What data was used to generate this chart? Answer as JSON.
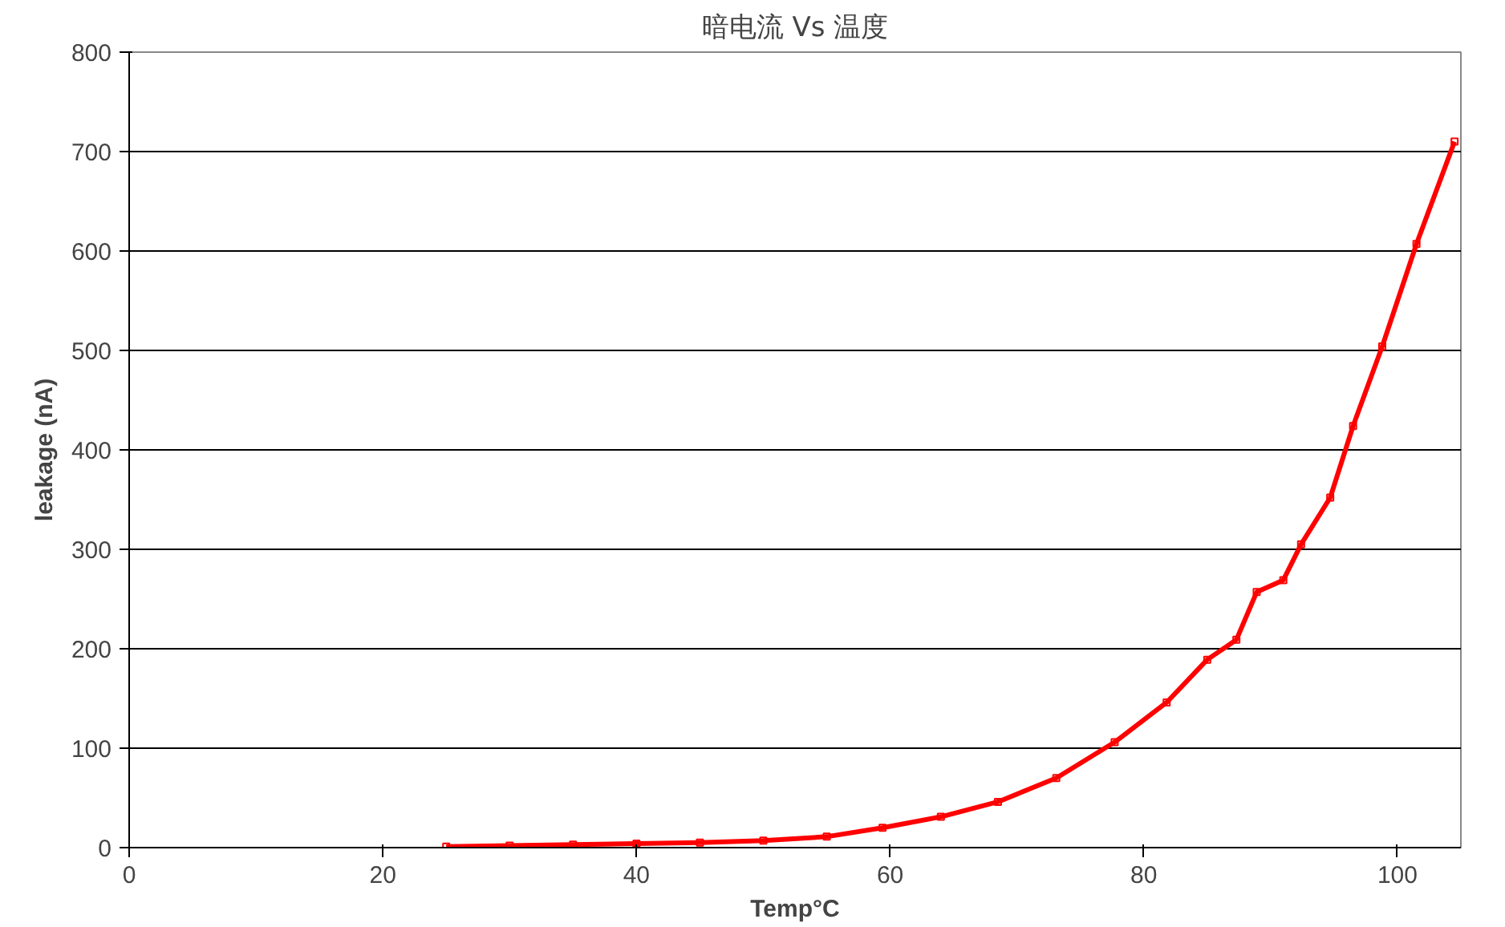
{
  "chart_data": {
    "type": "line",
    "title": "暗电流 Vs 温度",
    "xlabel": "Temp°C",
    "ylabel": "leakage (nA)",
    "series": [
      {
        "color": "#ff0000",
        "x": [
          25,
          30,
          35,
          40,
          45,
          50,
          55,
          59.4,
          64,
          68.5,
          73.1,
          77.7,
          81.8,
          85.0,
          87.3,
          88.9,
          91.0,
          92.4,
          94.7,
          96.5,
          98.8,
          101.5,
          104.5
        ],
        "values": [
          1,
          2,
          3,
          4,
          5,
          7,
          11,
          20,
          31,
          46,
          70,
          106,
          146,
          189,
          209,
          257,
          269,
          305,
          352,
          424,
          504,
          607,
          710
        ]
      }
    ],
    "xlim": [
      0,
      105
    ],
    "xticks": [
      0,
      20,
      40,
      60,
      80,
      100
    ],
    "ylim": [
      0,
      800
    ],
    "yticks": [
      0,
      100,
      200,
      300,
      400,
      500,
      600,
      700,
      800
    ],
    "grid": "y",
    "marker": "square",
    "line_style": "solid"
  }
}
